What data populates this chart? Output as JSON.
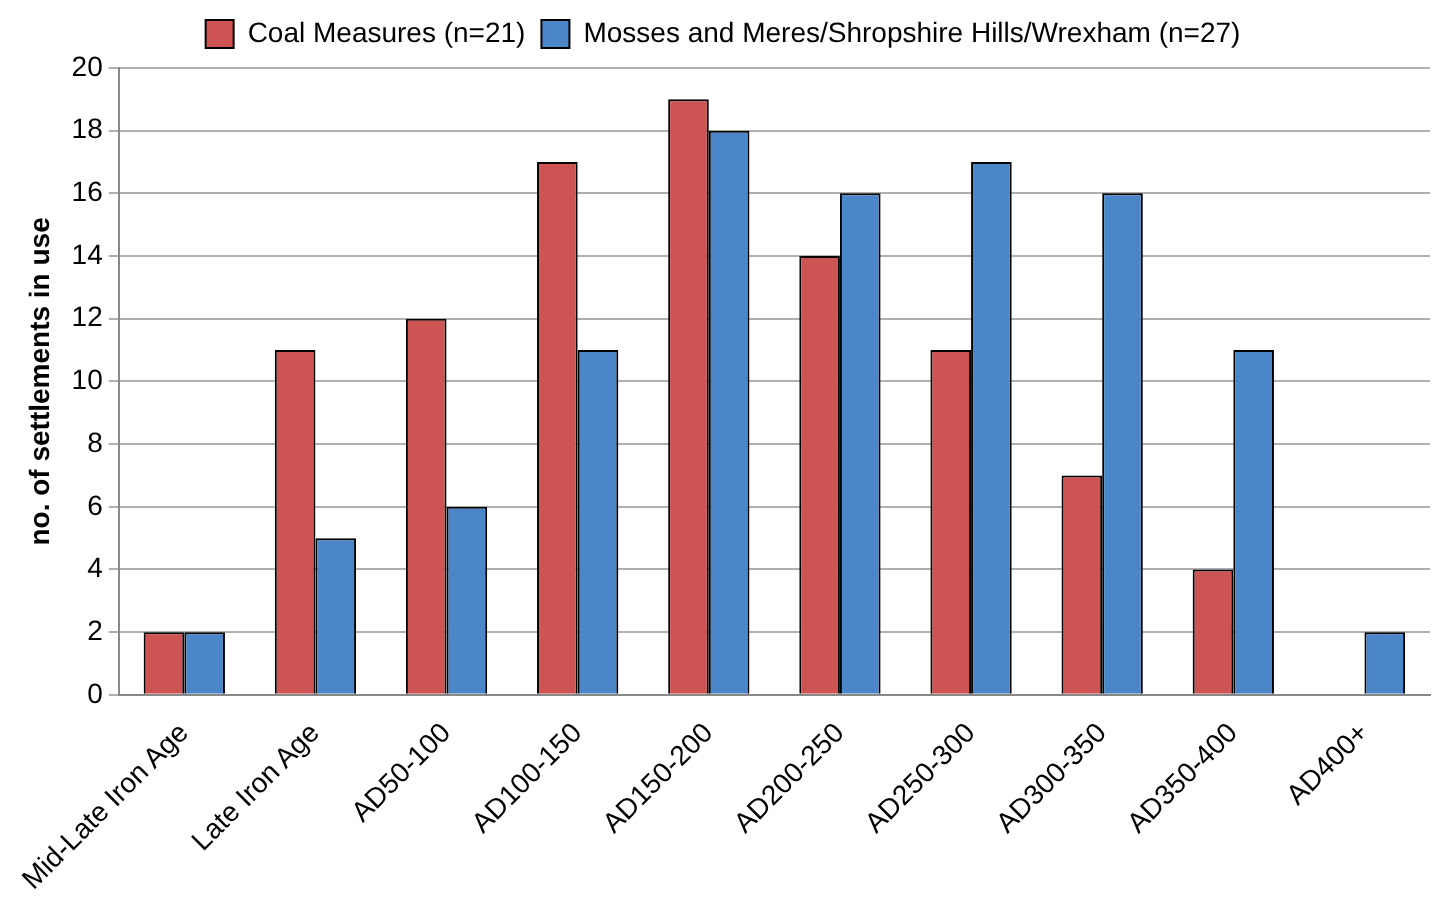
{
  "chart_data": {
    "type": "bar",
    "ylabel": "no. of settlements in use",
    "categories": [
      "Mid-Late Iron Age",
      "Late Iron Age",
      "AD50-100",
      "AD100-150",
      "AD150-200",
      "AD200-250",
      "AD250-300",
      "AD300-350",
      "AD350-400",
      "AD400+"
    ],
    "series": [
      {
        "name": "Coal Measures (n=21)",
        "color": "#cd5452",
        "values": [
          2,
          11,
          12,
          17,
          19,
          14,
          11,
          7,
          4,
          null
        ]
      },
      {
        "name": "Mosses and Meres/Shropshire Hills/Wrexham (n=27)",
        "color": "#4a86c8",
        "values": [
          2,
          5,
          6,
          11,
          18,
          16,
          17,
          16,
          11,
          2
        ]
      }
    ],
    "ylim": [
      0,
      20
    ],
    "yticks": [
      0,
      2,
      4,
      6,
      8,
      10,
      12,
      14,
      16,
      18,
      20
    ],
    "grid": "y",
    "legend": "top"
  }
}
